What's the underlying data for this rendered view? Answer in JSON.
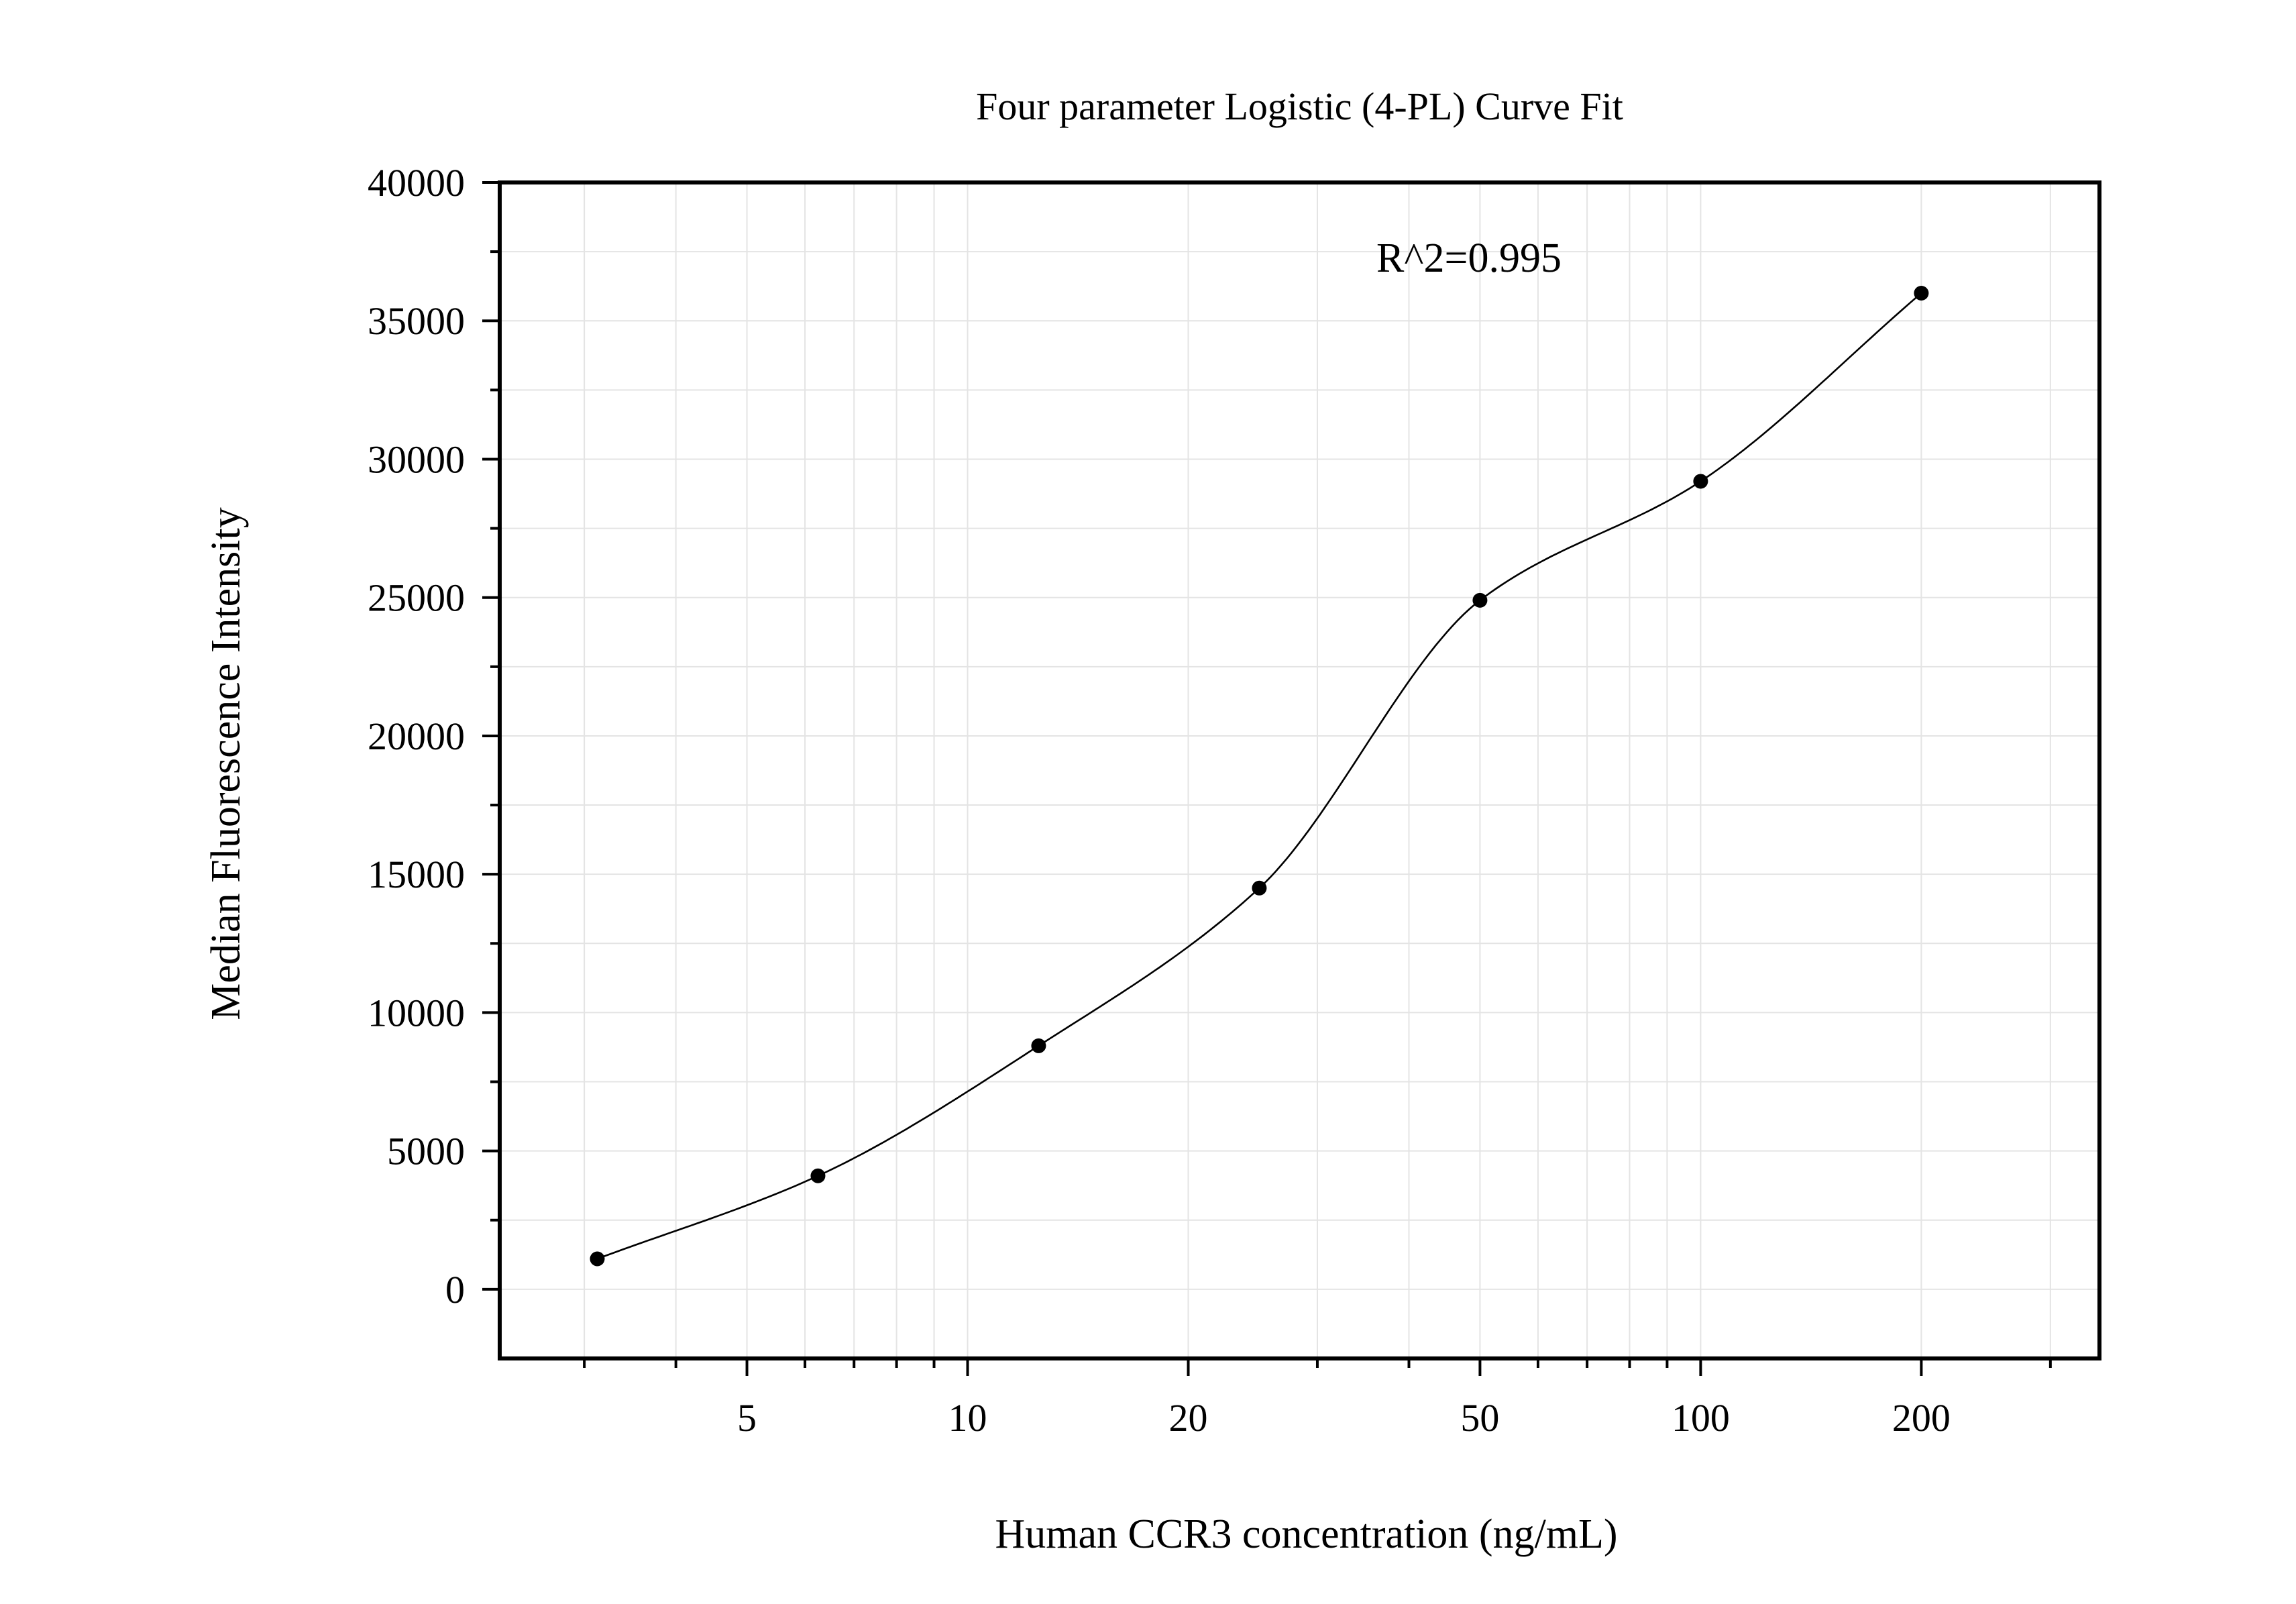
{
  "chart_data": {
    "type": "scatter",
    "title": "Four parameter Logistic (4-PL) Curve Fit",
    "xlabel": "Human CCR3 concentration (ng/mL)",
    "ylabel": "Median Fluorescence Intensity",
    "x_scale": "log",
    "xlim": [
      2.3,
      350
    ],
    "ylim": [
      -2500,
      40000
    ],
    "x_ticks": [
      5,
      10,
      20,
      50,
      100,
      200
    ],
    "x_tick_labels": [
      "5",
      "10",
      "20",
      "50",
      "100",
      "200"
    ],
    "y_ticks": [
      0,
      5000,
      10000,
      15000,
      20000,
      25000,
      30000,
      35000,
      40000
    ],
    "y_tick_labels": [
      "0",
      "5000",
      "10000",
      "15000",
      "20000",
      "25000",
      "30000",
      "35000",
      "40000"
    ],
    "grid": true,
    "annotation": "R^2=0.995",
    "series": [
      {
        "points": [
          {
            "x": 3.125,
            "y": 1100
          },
          {
            "x": 6.25,
            "y": 4100
          },
          {
            "x": 12.5,
            "y": 8800
          },
          {
            "x": 25,
            "y": 14500
          },
          {
            "x": 50,
            "y": 24900
          },
          {
            "x": 100,
            "y": 29200
          },
          {
            "x": 200,
            "y": 36000
          }
        ],
        "color": "#000000"
      }
    ],
    "fit": {
      "model": "4PL",
      "x_range": [
        3.125,
        200
      ]
    }
  }
}
